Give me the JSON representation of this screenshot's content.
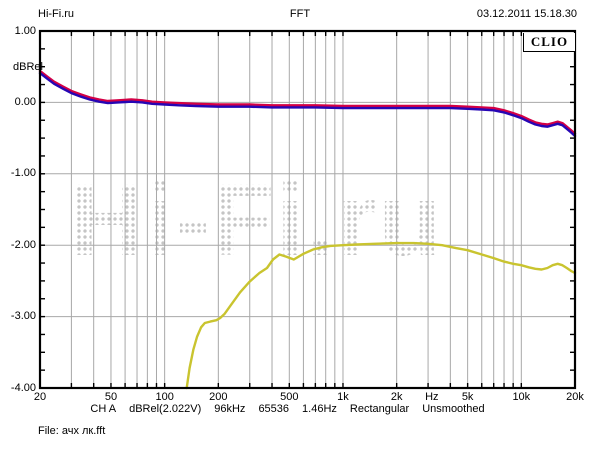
{
  "header": {
    "site": "Hi-Fi.ru",
    "title": "FFT",
    "datetime": "03.12.2011 15.18.30"
  },
  "brand": "CLIO",
  "watermark": "Hi-Fi.ru",
  "footer": {
    "status_parts": [
      "CH A",
      "dBRel(2.022V)",
      "96kHz",
      "65536",
      "1.46Hz",
      "Rectangular",
      "Unsmoothed"
    ],
    "file_label": "File: ачх лк.fft"
  },
  "colors": {
    "red": "#d40045",
    "blue": "#2606b4",
    "yellow": "#c9c42f",
    "grid": "#a8a8a8",
    "border": "#000000",
    "watermark_dots": "#c5c5c5"
  },
  "chart_data": {
    "type": "line",
    "title": "FFT",
    "xlabel": "Hz",
    "ylabel": "dBRel",
    "grid": true,
    "legend": false,
    "x_axis": {
      "scale": "log",
      "min": 20,
      "max": 20000,
      "unit_label": "Hz",
      "unit_label_hz": 3150,
      "ticks": [
        {
          "value": 20,
          "label": "20"
        },
        {
          "value": 50,
          "label": "50"
        },
        {
          "value": 100,
          "label": "100"
        },
        {
          "value": 200,
          "label": "200"
        },
        {
          "value": 500,
          "label": "500"
        },
        {
          "value": 1000,
          "label": "1k"
        },
        {
          "value": 2000,
          "label": "2k"
        },
        {
          "value": 5000,
          "label": "5k"
        },
        {
          "value": 10000,
          "label": "10k"
        },
        {
          "value": 20000,
          "label": "20k"
        }
      ]
    },
    "y_axis": {
      "label": "dBRel",
      "min": -4,
      "max": 1,
      "major_step": 1,
      "minor_step": 0.25,
      "ticks": [
        {
          "value": 1,
          "label": "1.00"
        },
        {
          "value": 0,
          "label": "0.00"
        },
        {
          "value": -1,
          "label": "-1.00"
        },
        {
          "value": -2,
          "label": "-2.00"
        },
        {
          "value": -3,
          "label": "-3.00"
        },
        {
          "value": -4,
          "label": "-4.00"
        }
      ]
    },
    "series": [
      {
        "name": "channel-a-red",
        "color": "#d40045",
        "points": [
          [
            20,
            0.44
          ],
          [
            22,
            0.36
          ],
          [
            24,
            0.29
          ],
          [
            27,
            0.22
          ],
          [
            30,
            0.16
          ],
          [
            34,
            0.11
          ],
          [
            38,
            0.07
          ],
          [
            43,
            0.04
          ],
          [
            48,
            0.02
          ],
          [
            55,
            0.03
          ],
          [
            65,
            0.04
          ],
          [
            75,
            0.03
          ],
          [
            85,
            0.01
          ],
          [
            100,
            0.0
          ],
          [
            120,
            -0.01
          ],
          [
            150,
            -0.02
          ],
          [
            200,
            -0.03
          ],
          [
            300,
            -0.03
          ],
          [
            400,
            -0.04
          ],
          [
            500,
            -0.04
          ],
          [
            700,
            -0.04
          ],
          [
            1000,
            -0.05
          ],
          [
            1500,
            -0.05
          ],
          [
            2000,
            -0.05
          ],
          [
            3000,
            -0.05
          ],
          [
            4000,
            -0.05
          ],
          [
            5000,
            -0.06
          ],
          [
            6000,
            -0.07
          ],
          [
            7000,
            -0.08
          ],
          [
            8000,
            -0.11
          ],
          [
            9000,
            -0.15
          ],
          [
            10000,
            -0.19
          ],
          [
            11000,
            -0.24
          ],
          [
            12000,
            -0.28
          ],
          [
            13000,
            -0.3
          ],
          [
            14000,
            -0.31
          ],
          [
            15000,
            -0.29
          ],
          [
            16000,
            -0.27
          ],
          [
            17000,
            -0.29
          ],
          [
            18000,
            -0.34
          ],
          [
            19000,
            -0.39
          ],
          [
            20000,
            -0.44
          ]
        ]
      },
      {
        "name": "channel-a-blue",
        "color": "#2606b4",
        "points": [
          [
            20,
            0.41
          ],
          [
            22,
            0.33
          ],
          [
            24,
            0.26
          ],
          [
            27,
            0.19
          ],
          [
            30,
            0.13
          ],
          [
            34,
            0.08
          ],
          [
            38,
            0.04
          ],
          [
            43,
            0.01
          ],
          [
            48,
            -0.01
          ],
          [
            55,
            0.0
          ],
          [
            65,
            0.01
          ],
          [
            75,
            0.0
          ],
          [
            85,
            -0.02
          ],
          [
            100,
            -0.03
          ],
          [
            120,
            -0.04
          ],
          [
            150,
            -0.05
          ],
          [
            200,
            -0.06
          ],
          [
            300,
            -0.06
          ],
          [
            400,
            -0.07
          ],
          [
            500,
            -0.07
          ],
          [
            700,
            -0.07
          ],
          [
            1000,
            -0.08
          ],
          [
            1500,
            -0.08
          ],
          [
            2000,
            -0.08
          ],
          [
            3000,
            -0.08
          ],
          [
            4000,
            -0.08
          ],
          [
            5000,
            -0.09
          ],
          [
            6000,
            -0.1
          ],
          [
            7000,
            -0.11
          ],
          [
            8000,
            -0.14
          ],
          [
            9000,
            -0.18
          ],
          [
            10000,
            -0.22
          ],
          [
            11000,
            -0.27
          ],
          [
            12000,
            -0.31
          ],
          [
            13000,
            -0.33
          ],
          [
            14000,
            -0.34
          ],
          [
            15000,
            -0.32
          ],
          [
            16000,
            -0.3
          ],
          [
            17000,
            -0.32
          ],
          [
            18000,
            -0.37
          ],
          [
            19000,
            -0.42
          ],
          [
            20000,
            -0.47
          ]
        ]
      },
      {
        "name": "reference-yellow",
        "color": "#c9c42f",
        "points": [
          [
            133,
            -4.0
          ],
          [
            138,
            -3.72
          ],
          [
            145,
            -3.46
          ],
          [
            152,
            -3.28
          ],
          [
            160,
            -3.15
          ],
          [
            168,
            -3.09
          ],
          [
            180,
            -3.07
          ],
          [
            195,
            -3.05
          ],
          [
            205,
            -3.02
          ],
          [
            217,
            -2.96
          ],
          [
            235,
            -2.84
          ],
          [
            265,
            -2.66
          ],
          [
            300,
            -2.51
          ],
          [
            340,
            -2.39
          ],
          [
            375,
            -2.32
          ],
          [
            405,
            -2.2
          ],
          [
            440,
            -2.13
          ],
          [
            480,
            -2.16
          ],
          [
            530,
            -2.2
          ],
          [
            600,
            -2.12
          ],
          [
            680,
            -2.06
          ],
          [
            760,
            -2.03
          ],
          [
            850,
            -2.01
          ],
          [
            1000,
            -2.0
          ],
          [
            1200,
            -1.99
          ],
          [
            1500,
            -1.98
          ],
          [
            2000,
            -1.97
          ],
          [
            2500,
            -1.97
          ],
          [
            3000,
            -1.98
          ],
          [
            3600,
            -2.0
          ],
          [
            4300,
            -2.04
          ],
          [
            5000,
            -2.07
          ],
          [
            6000,
            -2.13
          ],
          [
            7000,
            -2.18
          ],
          [
            8000,
            -2.23
          ],
          [
            9000,
            -2.26
          ],
          [
            10000,
            -2.28
          ],
          [
            11000,
            -2.31
          ],
          [
            12000,
            -2.33
          ],
          [
            13000,
            -2.34
          ],
          [
            14000,
            -2.32
          ],
          [
            15000,
            -2.28
          ],
          [
            16000,
            -2.26
          ],
          [
            17000,
            -2.28
          ],
          [
            18000,
            -2.32
          ],
          [
            19000,
            -2.36
          ],
          [
            20000,
            -2.39
          ]
        ]
      }
    ]
  }
}
